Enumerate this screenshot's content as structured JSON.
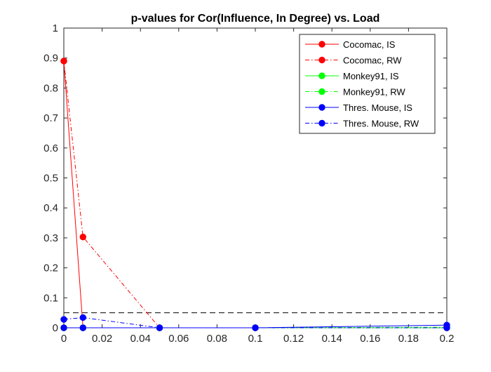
{
  "chart_data": {
    "type": "line",
    "title": "p-values for Cor(Influence, In Degree) vs. Load",
    "xlabel": "",
    "ylabel": "",
    "xlim": [
      0,
      0.2
    ],
    "ylim": [
      0,
      1
    ],
    "x_ticks": [
      0,
      0.02,
      0.04,
      0.06,
      0.08,
      0.1,
      0.12,
      0.14,
      0.16,
      0.18,
      0.2
    ],
    "x_tick_labels": [
      "0",
      "0.02",
      "0.04",
      "0.06",
      "0.08",
      "0.1",
      "0.12",
      "0.14",
      "0.16",
      "0.18",
      "0.2"
    ],
    "y_ticks": [
      0,
      0.1,
      0.2,
      0.3,
      0.4,
      0.5,
      0.6,
      0.7,
      0.8,
      0.9,
      1
    ],
    "y_tick_labels": [
      "0",
      "0.1",
      "0.2",
      "0.3",
      "0.4",
      "0.5",
      "0.6",
      "0.7",
      "0.8",
      "0.9",
      "1"
    ],
    "grid": false,
    "legend_position": "top-right",
    "x": [
      0,
      0.01,
      0.05,
      0.1,
      0.2
    ],
    "series": [
      {
        "name": "Cocomac, IS",
        "values": [
          0.89,
          0.0,
          0.0,
          0.0,
          0.0
        ],
        "color": "#ff0000",
        "dash": "solid",
        "marker": "circle"
      },
      {
        "name": "Cocomac, RW",
        "values": [
          0.89,
          0.303,
          0.0,
          0.0,
          0.0
        ],
        "color": "#ff0000",
        "dash": "dashdot",
        "marker": "circle"
      },
      {
        "name": "Monkey91, IS",
        "values": [
          0.0,
          0.0,
          0.0,
          0.0,
          0.0
        ],
        "color": "#00ff00",
        "dash": "solid",
        "marker": "circle"
      },
      {
        "name": "Monkey91, RW",
        "values": [
          0.0,
          0.0,
          0.0,
          0.0,
          0.002
        ],
        "color": "#00ff00",
        "dash": "dashdot",
        "marker": "circle"
      },
      {
        "name": "Thres. Mouse, IS",
        "values": [
          0.0,
          0.0,
          0.0,
          0.0,
          0.009
        ],
        "color": "#0000ff",
        "dash": "solid",
        "marker": "circle"
      },
      {
        "name": "Thres. Mouse, RW",
        "values": [
          0.028,
          0.034,
          0.0,
          0.0,
          0.0
        ],
        "color": "#0000ff",
        "dash": "dashdot",
        "marker": "circle"
      }
    ],
    "reference_lines": [
      {
        "y": 0.05,
        "color": "#000000",
        "dash": "dashed"
      }
    ]
  }
}
